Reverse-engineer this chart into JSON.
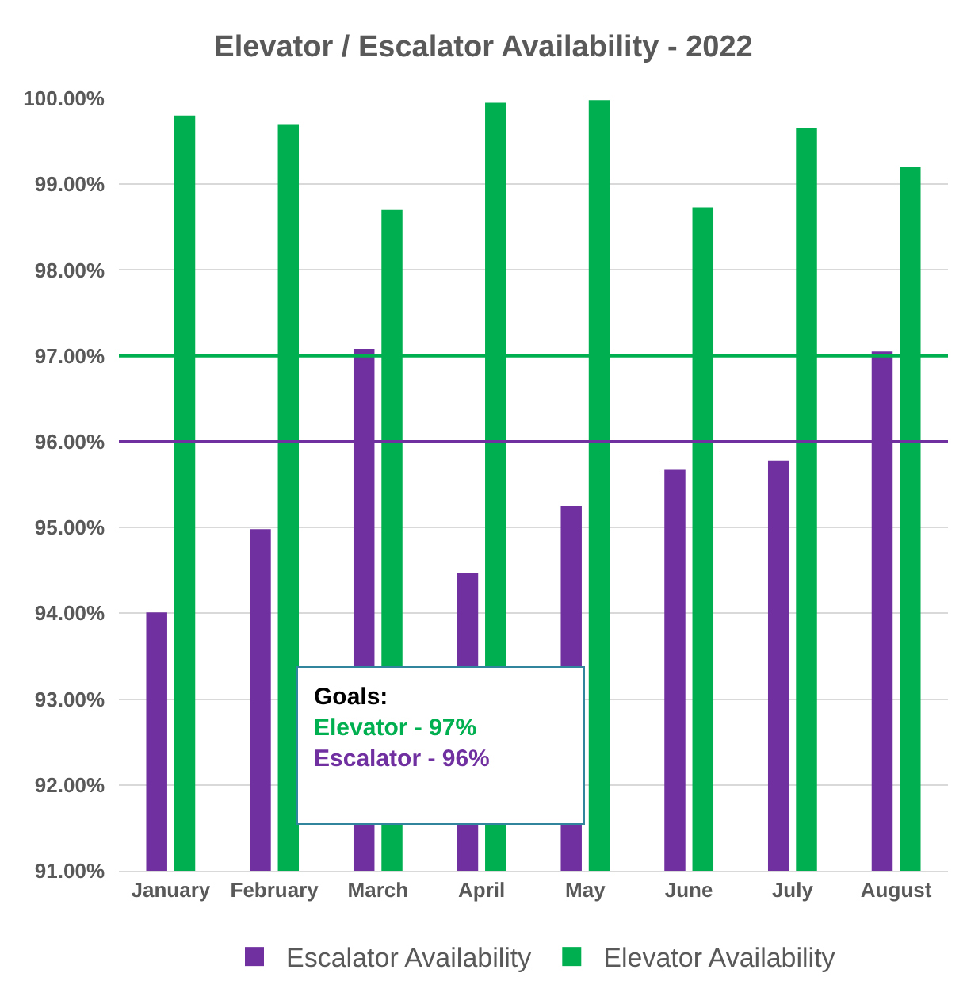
{
  "chart_data": {
    "type": "bar",
    "title": "Elevator / Escalator Availability - 2022",
    "categories": [
      "January",
      "February",
      "March",
      "April",
      "May",
      "June",
      "July",
      "August"
    ],
    "series": [
      {
        "name": "Escalator Availability",
        "color": "#7030a0",
        "values": [
          94.01,
          94.98,
          97.08,
          94.47,
          95.25,
          95.67,
          95.78,
          97.05
        ]
      },
      {
        "name": "Elevator Availability",
        "color": "#00b050",
        "values": [
          99.8,
          99.7,
          98.7,
          99.95,
          99.98,
          98.73,
          99.65,
          99.2
        ]
      }
    ],
    "ylim": [
      91,
      100
    ],
    "yticks": [
      {
        "value": 91,
        "label": "91.00%"
      },
      {
        "value": 92,
        "label": "92.00%"
      },
      {
        "value": 93,
        "label": "93.00%"
      },
      {
        "value": 94,
        "label": "94.00%"
      },
      {
        "value": 95,
        "label": "95.00%"
      },
      {
        "value": 96,
        "label": "96.00%"
      },
      {
        "value": 97,
        "label": "97.00%"
      },
      {
        "value": 98,
        "label": "98.00%"
      },
      {
        "value": 99,
        "label": "99.00%"
      },
      {
        "value": 100,
        "label": "100.00%"
      }
    ],
    "ref_lines": [
      {
        "axis": "y",
        "value": 97,
        "label": "Elevator - 97%",
        "color": "#00b050"
      },
      {
        "axis": "y",
        "value": 96,
        "label": "Escalator - 96%",
        "color": "#7030a0"
      }
    ],
    "annotations": [
      "Goals:"
    ],
    "grid": "y",
    "legend": "bottom"
  }
}
